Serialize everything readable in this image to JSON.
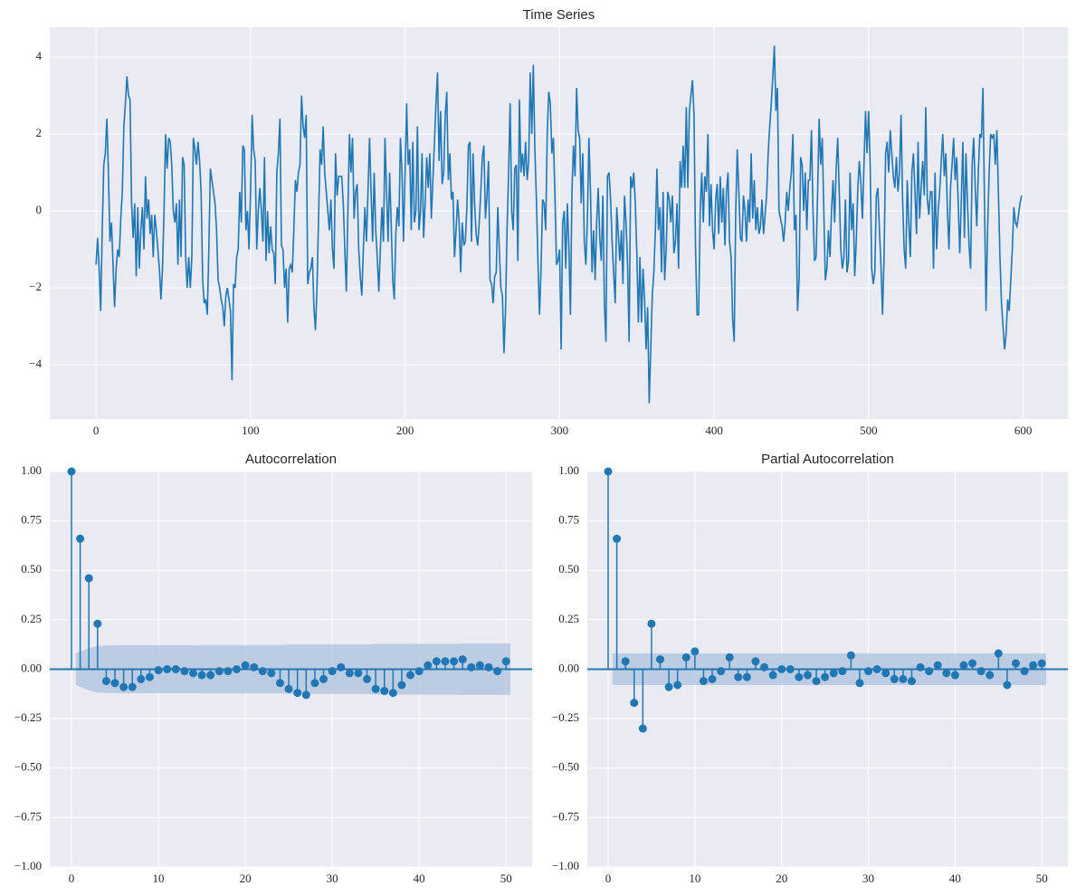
{
  "chart_data": [
    {
      "type": "line",
      "title": "Time Series",
      "color": "#1f77b4",
      "grid": true,
      "xlim": [
        -29.95,
        628.95
      ],
      "xticks": [
        0,
        100,
        200,
        300,
        400,
        500,
        600
      ],
      "ylim": [
        -5.41,
        4.78
      ],
      "yticks": [
        {
          "value": -4,
          "label": "−4"
        },
        {
          "value": -2,
          "label": "−2"
        },
        0,
        2,
        4
      ],
      "values": [
        -1.4,
        -0.7,
        -1.5,
        -2.6,
        -0.5,
        1.2,
        1.5,
        2.4,
        1.0,
        -0.8,
        -0.3,
        -1.4,
        -2.5,
        -1.5,
        -1.0,
        -1.2,
        -0.2,
        0.5,
        2.2,
        2.8,
        3.5,
        3.0,
        2.9,
        0.2,
        -0.7,
        0.2,
        -1.7,
        0.1,
        -1.5,
        -0.5,
        0.1,
        -1.0,
        0.9,
        -0.2,
        0.3,
        -0.6,
        -0.1,
        -1.2,
        -0.1,
        -0.5,
        -1.0,
        -1.5,
        -2.3,
        -1.5,
        0.0,
        2.0,
        1.1,
        1.9,
        1.8,
        1.2,
        0.0,
        -0.3,
        0.2,
        -1.4,
        0.3,
        -1.2,
        1.4,
        1.2,
        -1.2,
        -2.0,
        -1.2,
        -2.0,
        -1.2,
        1.9,
        1.6,
        1.2,
        1.8,
        1.3,
        0.5,
        -1.8,
        -2.4,
        -2.3,
        -2.7,
        -1.0,
        1.1,
        0.8,
        0.5,
        0.2,
        -0.5,
        -1.8,
        -2.0,
        -2.3,
        -2.5,
        -3.0,
        -2.2,
        -2.0,
        -2.3,
        -2.6,
        -4.4,
        -1.9,
        -2.0,
        -1.2,
        -1.0,
        0.5,
        -0.3,
        1.7,
        1.6,
        -0.5,
        0.0,
        -1.0,
        0.5,
        2.5,
        1.6,
        1.3,
        -1.0,
        0.0,
        0.6,
        0.0,
        -0.8,
        1.4,
        -1.3,
        0.0,
        -1.1,
        -0.4,
        -1.0,
        -1.1,
        -1.9,
        1.0,
        1.5,
        2.4,
        -0.9,
        -1.0,
        -2.0,
        -1.5,
        -2.9,
        -1.5,
        -1.4,
        -1.6,
        -0.5,
        0.8,
        0.5,
        1.0,
        1.2,
        3.0,
        2.2,
        1.9,
        2.5,
        -1.9,
        -1.6,
        -1.5,
        -1.2,
        -2.5,
        -3.1,
        -2.0,
        -0.2,
        1.6,
        1.2,
        2.2,
        1.0,
        0.5,
        0.0,
        -0.5,
        0.3,
        -1.0,
        -1.5,
        1.5,
        0.4,
        0.9,
        0.9,
        0.9,
        0.2,
        -1.0,
        -2.1,
        0.0,
        2.0,
        1.0,
        1.9,
        -0.2,
        0.5,
        0.7,
        -1.0,
        -1.7,
        -2.2,
        -1.0,
        0.1,
        -0.8,
        0.5,
        1.9,
        0.5,
        -0.8,
        1.0,
        -0.5,
        -1.2,
        -2.1,
        -1.0,
        0.1,
        -0.8,
        1.9,
        0.5,
        -0.8,
        1.0,
        -0.3,
        -1.8,
        -2.3,
        -0.6,
        0.1,
        -0.4,
        1.9,
        1.0,
        -0.8,
        1.0,
        2.8,
        1.2,
        1.6,
        -0.5,
        1.8,
        -0.3,
        0.0,
        2.2,
        -0.5,
        0.0,
        1.5,
        -0.7,
        0.2,
        1.4,
        0.6,
        1.5,
        -0.2,
        0.8,
        1.8,
        2.8,
        3.6,
        1.3,
        2.6,
        0.7,
        1.0,
        2.5,
        3.1,
        0.8,
        1.5,
        0.3,
        0.5,
        -1.2,
        -0.5,
        0.3,
        -0.3,
        -1.6,
        -0.3,
        -0.9,
        -0.8,
        0.1,
        1.7,
        1.8,
        -0.8,
        1.5,
        0.2,
        -0.6,
        -0.9,
        -0.3,
        0.5,
        1.4,
        1.7,
        -0.2,
        0.4,
        1.3,
        -1.8,
        -1.9,
        -2.4,
        -1.7,
        -1.6,
        0.1,
        -1.0,
        -2.0,
        -2.2,
        -3.7,
        -2.6,
        -0.5,
        1.0,
        2.8,
        0.0,
        -0.5,
        1.1,
        1.2,
        -1.3,
        2.9,
        1.0,
        1.5,
        0.9,
        1.8,
        0.8,
        1.3,
        3.6,
        2.0,
        3.8,
        1.6,
        0.3,
        -1.3,
        -2.7,
        -1.5,
        0.3,
        0.2,
        -0.5,
        2.0,
        3.1,
        2.8,
        1.5,
        1.9,
        0.4,
        -1.4,
        -1.3,
        -1.0,
        -3.6,
        -0.3,
        0.0,
        -1.5,
        0.2,
        -0.9,
        -2.7,
        0.5,
        1.7,
        0.9,
        3.2,
        2.1,
        1.9,
        0.2,
        1.5,
        -0.8,
        -1.4,
        -0.2,
        1.9,
        0.5,
        -1.6,
        -0.5,
        -1.8,
        -0.3,
        0.6,
        -0.7,
        -1.3,
        0.4,
        -2.4,
        -3.4,
        0.9,
        1.0,
        0.3,
        -0.8,
        -1.6,
        -2.4,
        0.1,
        -0.6,
        -1.3,
        -0.5,
        -1.9,
        0.4,
        -0.3,
        -1.4,
        -3.4,
        0.9,
        0.6,
        1.0,
        0.2,
        -1.1,
        -2.9,
        -1.2,
        -2.9,
        -1.5,
        -2.3,
        -3.6,
        -2.5,
        -5.0,
        -3.6,
        -2.2,
        -1.6,
        -0.5,
        1.1,
        -0.5,
        0.1,
        -1.6,
        0.5,
        -1.8,
        -1.0,
        0.5,
        0.3,
        -0.3,
        0.4,
        -1.1,
        -0.8,
        0.2,
        -1.5,
        1.3,
        0.6,
        1.7,
        0.6,
        2.7,
        0.6,
        2.6,
        3.0,
        3.4,
        2.5,
        -1.0,
        -2.7,
        -2.7,
        0.0,
        1.0,
        -0.3,
        0.9,
        0.5,
        2.0,
        -0.4,
        0.7,
        -0.5,
        -1.0,
        0.3,
        0.7,
        -0.6,
        0.9,
        -0.3,
        0.6,
        -0.9,
        0.5,
        1.0,
        -0.8,
        -1.2,
        -2.8,
        -3.4,
        0.0,
        1.6,
        0.5,
        -0.7,
        -0.8,
        0.4,
        0.0,
        -0.8,
        0.3,
        -0.3,
        1.5,
        -0.2,
        0.8,
        -0.5,
        0.1,
        -0.6,
        -0.4,
        0.3,
        -0.6,
        -0.1,
        0.4,
        1.5,
        2.2,
        2.8,
        3.5,
        4.3,
        2.6,
        3.2,
        0.0,
        -0.2,
        -0.4,
        -0.8,
        -0.3,
        0.5,
        0.0,
        0.6,
        1.0,
        2.0,
        -0.5,
        -0.1,
        -2.6,
        -1.8,
        1.4,
        1.2,
        0.0,
        1.0,
        -0.5,
        0.8,
        0.8,
        2.1,
        0.0,
        -1.3,
        -1.2,
        0.5,
        2.4,
        1.2,
        1.9,
        0.0,
        -1.8,
        -1.5,
        -0.5,
        -1.2,
        0.0,
        0.8,
        -0.3,
        1.1,
        1.9,
        0.5,
        -1.0,
        -1.5,
        -1.2,
        0.3,
        -1.6,
        -1.3,
        1.0,
        -0.5,
        0.2,
        -1.7,
        -0.8,
        0.6,
        1.3,
        0.7,
        -0.2,
        1.2,
        2.6,
        1.5,
        2.6,
        1.2,
        -1.5,
        -1.9,
        -1.6,
        0.4,
        0.6,
        -0.5,
        -1.4,
        -2.7,
        -1.2,
        1.5,
        1.8,
        1.0,
        2.1,
        1.5,
        0.9,
        0.6,
        1.4,
        0.5,
        1.0,
        2.5,
        0.3,
        -1.0,
        -1.5,
        0.8,
        -0.3,
        -1.2,
        1.0,
        1.5,
        0.5,
        -0.6,
        1.8,
        -0.2,
        0.6,
        1.3,
        0.4,
        2.7,
        0.3,
        -0.1,
        0.5,
        0.5,
        -1.5,
        1.0,
        -1.0,
        0.0,
        0.5,
        1.3,
        2.0,
        0.9,
        1.5,
        0.0,
        -1.0,
        0.6,
        1.2,
        1.9,
        0.8,
        1.4,
        0.2,
        -1.1,
        0.3,
        1.8,
        -0.7,
        1.5,
        0.2,
        -0.9,
        -1.5,
        1.2,
        1.9,
        0.6,
        -0.4,
        1.0,
        2.0,
        1.9,
        3.2,
        0.2,
        -2.6,
        -0.5,
        1.0,
        2.0,
        1.9,
        2.0,
        1.2,
        2.1,
        0.5,
        -1.2,
        -2.4,
        -3.0,
        -3.6,
        -3.2,
        -2.3,
        -2.6,
        -1.8,
        -1.0,
        0.1,
        -0.3,
        -0.4,
        -0.1,
        0.2,
        0.4
      ]
    },
    {
      "type": "stem",
      "title": "Autocorrelation",
      "color": "#1f77b4",
      "band_color": "#b0c4de",
      "grid": true,
      "xlim": [
        -2.5,
        53
      ],
      "xticks": [
        0,
        10,
        20,
        30,
        40,
        50
      ],
      "ylim": [
        -1,
        1
      ],
      "yticks": [
        {
          "value": -1,
          "label": "−1.00"
        },
        {
          "value": -0.75,
          "label": "−0.75"
        },
        {
          "value": -0.5,
          "label": "−0.50"
        },
        {
          "value": -0.25,
          "label": "−0.25"
        },
        {
          "value": 0,
          "label": "0.00"
        },
        {
          "value": 0.25,
          "label": "0.25"
        },
        {
          "value": 0.5,
          "label": "0.50"
        },
        {
          "value": 0.75,
          "label": "0.75"
        },
        {
          "value": 1,
          "label": "1.00"
        }
      ],
      "x": [
        0,
        1,
        2,
        3,
        4,
        5,
        6,
        7,
        8,
        9,
        10,
        11,
        12,
        13,
        14,
        15,
        16,
        17,
        18,
        19,
        20,
        21,
        22,
        23,
        24,
        25,
        26,
        27,
        28,
        29,
        30,
        31,
        32,
        33,
        34,
        35,
        36,
        37,
        38,
        39,
        40,
        41,
        42,
        43,
        44,
        45,
        46,
        47,
        48,
        49,
        50
      ],
      "values": [
        1.0,
        0.66,
        0.46,
        0.23,
        -0.06,
        -0.07,
        -0.09,
        -0.09,
        -0.05,
        -0.04,
        -0.005,
        0.0,
        0.0,
        -0.01,
        -0.02,
        -0.03,
        -0.03,
        -0.01,
        -0.01,
        0.0,
        0.02,
        0.01,
        -0.01,
        -0.02,
        -0.07,
        -0.1,
        -0.12,
        -0.13,
        -0.07,
        -0.05,
        -0.01,
        0.01,
        -0.02,
        -0.02,
        -0.05,
        -0.1,
        -0.11,
        -0.12,
        -0.08,
        -0.03,
        -0.01,
        0.02,
        0.04,
        0.04,
        0.04,
        0.05,
        0.01,
        0.02,
        0.01,
        -0.01,
        0.04
      ],
      "confidence_band": [
        null,
        0.08,
        0.107,
        0.118,
        0.12,
        0.121,
        0.121,
        0.121,
        0.121,
        0.121,
        0.121,
        0.121,
        0.121,
        0.121,
        0.121,
        0.122,
        0.122,
        0.122,
        0.122,
        0.122,
        0.122,
        0.122,
        0.122,
        0.122,
        0.122,
        0.125,
        0.125,
        0.125,
        0.125,
        0.125,
        0.125,
        0.125,
        0.125,
        0.125,
        0.125,
        0.128,
        0.128,
        0.128,
        0.128,
        0.128,
        0.128,
        0.128,
        0.128,
        0.128,
        0.128,
        0.13,
        0.13,
        0.13,
        0.13,
        0.13,
        0.13
      ]
    },
    {
      "type": "stem",
      "title": "Partial Autocorrelation",
      "color": "#1f77b4",
      "band_color": "#b0c4de",
      "grid": true,
      "xlim": [
        -2.4,
        53
      ],
      "xticks": [
        0,
        10,
        20,
        30,
        40,
        50
      ],
      "ylim": [
        -1,
        1
      ],
      "yticks": [
        {
          "value": -1,
          "label": "−1.00"
        },
        {
          "value": -0.75,
          "label": "−0.75"
        },
        {
          "value": -0.5,
          "label": "−0.50"
        },
        {
          "value": -0.25,
          "label": "−0.25"
        },
        {
          "value": 0,
          "label": "0.00"
        },
        {
          "value": 0.25,
          "label": "0.25"
        },
        {
          "value": 0.5,
          "label": "0.50"
        },
        {
          "value": 0.75,
          "label": "0.75"
        },
        {
          "value": 1,
          "label": "1.00"
        }
      ],
      "x": [
        0,
        1,
        2,
        3,
        4,
        5,
        6,
        7,
        8,
        9,
        10,
        11,
        12,
        13,
        14,
        15,
        16,
        17,
        18,
        19,
        20,
        21,
        22,
        23,
        24,
        25,
        26,
        27,
        28,
        29,
        30,
        31,
        32,
        33,
        34,
        35,
        36,
        37,
        38,
        39,
        40,
        41,
        42,
        43,
        44,
        45,
        46,
        47,
        48,
        49,
        50
      ],
      "values": [
        1.0,
        0.66,
        0.04,
        -0.17,
        -0.3,
        0.23,
        0.05,
        -0.09,
        -0.08,
        0.06,
        0.09,
        -0.06,
        -0.05,
        -0.01,
        0.06,
        -0.04,
        -0.04,
        0.04,
        0.01,
        -0.03,
        0.0,
        0.0,
        -0.04,
        -0.03,
        -0.06,
        -0.04,
        -0.02,
        -0.01,
        0.07,
        -0.07,
        -0.01,
        0.0,
        -0.02,
        -0.05,
        -0.05,
        -0.06,
        0.01,
        -0.01,
        0.02,
        -0.02,
        -0.03,
        0.02,
        0.03,
        -0.01,
        -0.03,
        0.08,
        -0.08,
        0.03,
        -0.01,
        0.02,
        0.03
      ],
      "confidence_band": [
        null,
        0.08,
        0.08,
        0.08,
        0.08,
        0.08,
        0.08,
        0.08,
        0.08,
        0.08,
        0.08,
        0.08,
        0.08,
        0.08,
        0.08,
        0.08,
        0.08,
        0.08,
        0.08,
        0.08,
        0.08,
        0.08,
        0.08,
        0.08,
        0.08,
        0.08,
        0.08,
        0.08,
        0.08,
        0.08,
        0.08,
        0.08,
        0.08,
        0.08,
        0.08,
        0.08,
        0.08,
        0.08,
        0.08,
        0.08,
        0.08,
        0.08,
        0.08,
        0.08,
        0.08,
        0.08,
        0.08,
        0.08,
        0.08,
        0.08,
        0.08
      ]
    }
  ]
}
